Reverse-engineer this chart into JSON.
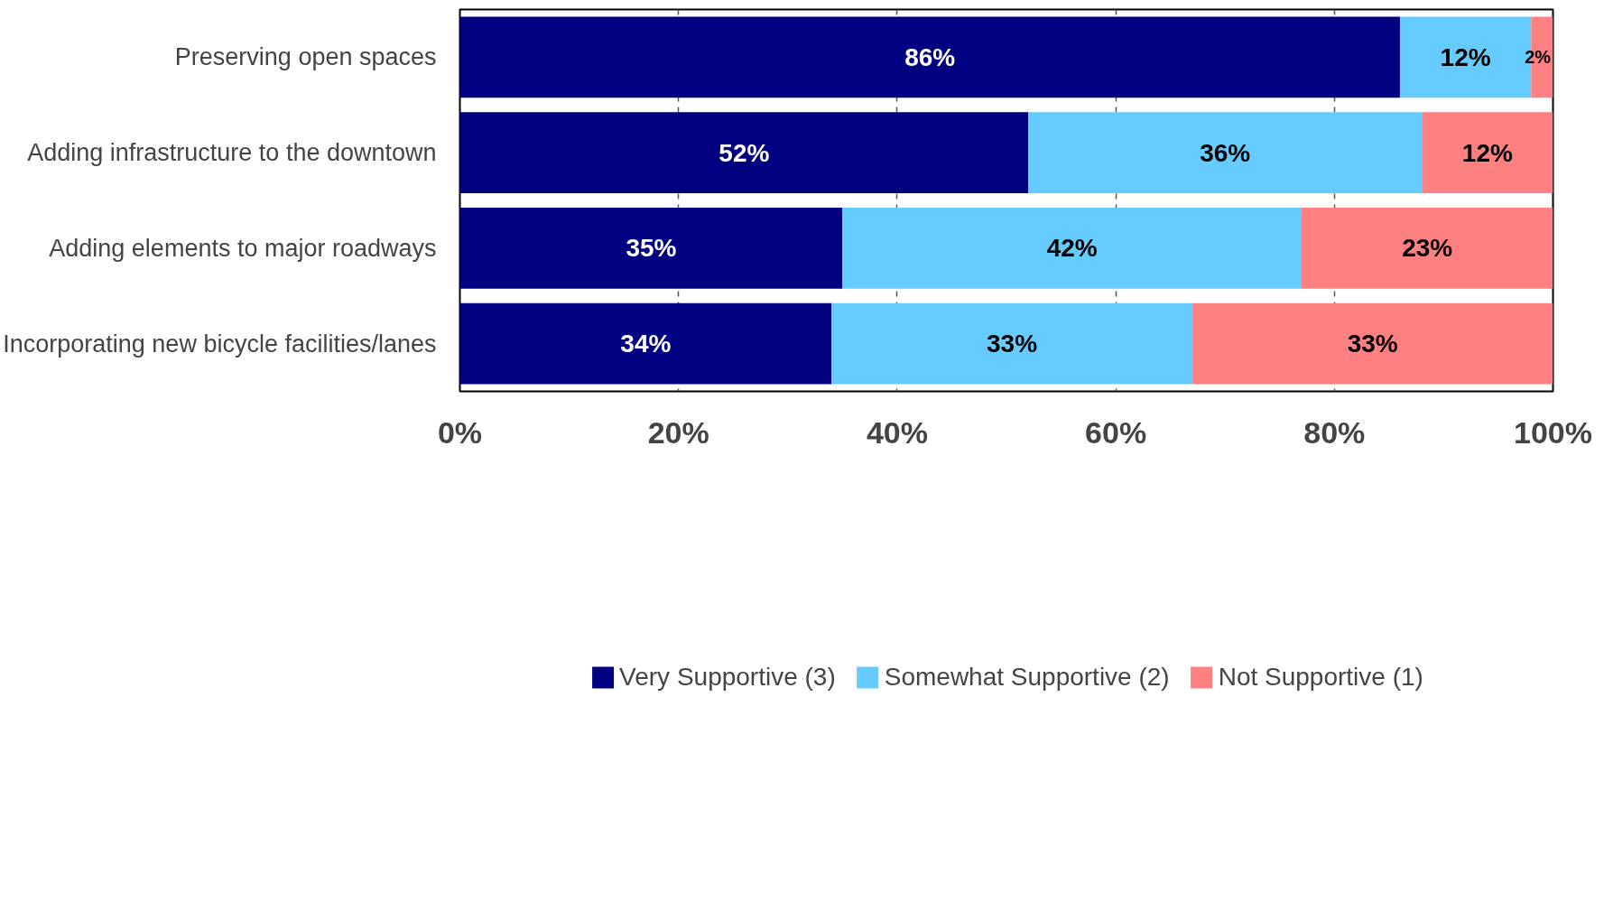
{
  "chart_data": {
    "type": "bar",
    "orientation": "horizontal",
    "stacked": true,
    "grid": "x",
    "legend": "bottom",
    "categories": [
      "Preserving open spaces",
      "Adding infrastructure to the downtown",
      "Adding elements to major roadways",
      "Incorporating new bicycle facilities/lanes"
    ],
    "series": [
      {
        "name": "Very Supportive (3)",
        "color": "#000080",
        "values": [
          86,
          52,
          35,
          34
        ],
        "value_labels": [
          "86%",
          "52%",
          "35%",
          "34%"
        ]
      },
      {
        "name": "Somewhat Supportive (2)",
        "color": "#66ccff",
        "values": [
          12,
          36,
          42,
          33
        ],
        "value_labels": [
          "12%",
          "36%",
          "42%",
          "33%"
        ]
      },
      {
        "name": "Not Supportive (1)",
        "color": "#ff8080",
        "values": [
          2,
          12,
          23,
          33
        ],
        "value_labels": [
          "2%",
          "12%",
          "23%",
          "33%"
        ]
      }
    ],
    "xlim": [
      0,
      100
    ],
    "xticks": [
      {
        "value": 0,
        "label": "0%"
      },
      {
        "value": 20,
        "label": "20%"
      },
      {
        "value": 40,
        "label": "40%"
      },
      {
        "value": 60,
        "label": "60%"
      },
      {
        "value": 80,
        "label": "80%"
      },
      {
        "value": 100,
        "label": "100%"
      }
    ]
  }
}
